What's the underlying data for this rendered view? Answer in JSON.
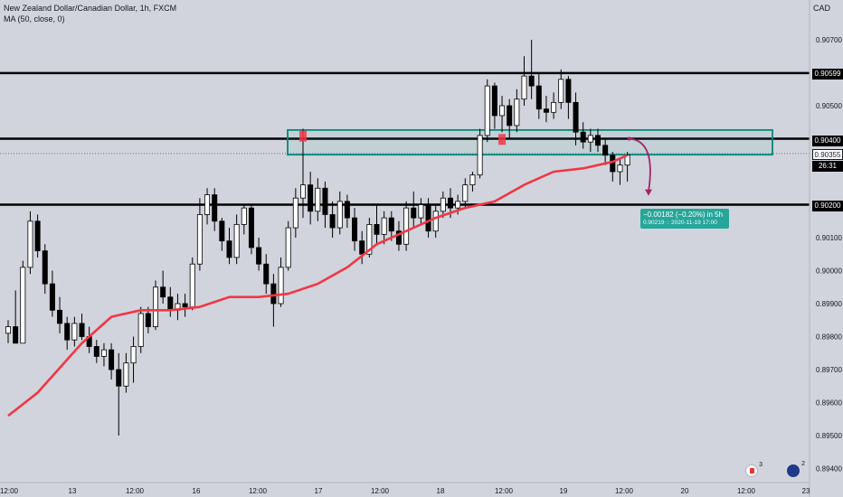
{
  "legend": {
    "symbol": "New Zealand Dollar/Canadian Dollar, 1h, FXCM",
    "indicator": "MA (50, close, 0)"
  },
  "currency_label": "CAD",
  "price_tags": {
    "resistance": "0.90599",
    "support_zone": "0.90400",
    "last": "0.90355",
    "countdown": "26:31",
    "support": "0.90200"
  },
  "projection": {
    "line1": "−0.00182 (−0.20%) in 5h",
    "line2": "0.90219  ◌ 2020-11-19  17:00"
  },
  "flags": {
    "ca_count": "3",
    "nz_count": "2"
  },
  "colors": {
    "background": "#d1d4dc",
    "ma": "#f23645",
    "zone": "#00897b",
    "projection": "#26a69a",
    "arrow": "#a3236b"
  },
  "chart_data": {
    "type": "candlestick",
    "title": "",
    "series_name": "New Zealand Dollar/Canadian Dollar, 1h, FXCM",
    "ylim": [
      0.8936,
      0.908
    ],
    "y_ticks": [
      "0.90700",
      "0.90500",
      "0.90100",
      "0.90000",
      "0.89900",
      "0.89800",
      "0.89700",
      "0.89600",
      "0.89500",
      "0.89400"
    ],
    "x_ticks": [
      "12:00",
      "13",
      "12:00",
      "16",
      "12:00",
      "17",
      "12:00",
      "18",
      "12:00",
      "19",
      "12:00",
      "20",
      "12:00",
      "23"
    ],
    "candles": [
      {
        "o": 0.8981,
        "h": 0.8985,
        "l": 0.8978,
        "c": 0.8983
      },
      {
        "o": 0.8983,
        "h": 0.8994,
        "l": 0.8979,
        "c": 0.8978
      },
      {
        "o": 0.8978,
        "h": 0.9003,
        "l": 0.8978,
        "c": 0.9001
      },
      {
        "o": 0.9001,
        "h": 0.9018,
        "l": 0.8999,
        "c": 0.9015
      },
      {
        "o": 0.9015,
        "h": 0.9017,
        "l": 0.9004,
        "c": 0.9006
      },
      {
        "o": 0.9006,
        "h": 0.9008,
        "l": 0.8993,
        "c": 0.8996
      },
      {
        "o": 0.8996,
        "h": 0.9,
        "l": 0.8986,
        "c": 0.8988
      },
      {
        "o": 0.8988,
        "h": 0.8992,
        "l": 0.8981,
        "c": 0.8984
      },
      {
        "o": 0.8984,
        "h": 0.8986,
        "l": 0.8976,
        "c": 0.8979
      },
      {
        "o": 0.8979,
        "h": 0.8986,
        "l": 0.8977,
        "c": 0.8984
      },
      {
        "o": 0.8984,
        "h": 0.8987,
        "l": 0.8979,
        "c": 0.898
      },
      {
        "o": 0.898,
        "h": 0.8983,
        "l": 0.8975,
        "c": 0.8977
      },
      {
        "o": 0.8977,
        "h": 0.8979,
        "l": 0.8972,
        "c": 0.8974
      },
      {
        "o": 0.8974,
        "h": 0.8978,
        "l": 0.8971,
        "c": 0.8976
      },
      {
        "o": 0.8976,
        "h": 0.8978,
        "l": 0.8967,
        "c": 0.897
      },
      {
        "o": 0.897,
        "h": 0.8975,
        "l": 0.895,
        "c": 0.8965
      },
      {
        "o": 0.8965,
        "h": 0.8975,
        "l": 0.8963,
        "c": 0.8972
      },
      {
        "o": 0.8972,
        "h": 0.898,
        "l": 0.8966,
        "c": 0.8977
      },
      {
        "o": 0.8977,
        "h": 0.8989,
        "l": 0.8975,
        "c": 0.8987
      },
      {
        "o": 0.8987,
        "h": 0.8989,
        "l": 0.8981,
        "c": 0.8983
      },
      {
        "o": 0.8983,
        "h": 0.8997,
        "l": 0.8982,
        "c": 0.8995
      },
      {
        "o": 0.8995,
        "h": 0.9,
        "l": 0.899,
        "c": 0.8992
      },
      {
        "o": 0.8992,
        "h": 0.8995,
        "l": 0.8986,
        "c": 0.8988
      },
      {
        "o": 0.8988,
        "h": 0.8993,
        "l": 0.8985,
        "c": 0.899
      },
      {
        "o": 0.899,
        "h": 0.8993,
        "l": 0.8986,
        "c": 0.8989
      },
      {
        "o": 0.8989,
        "h": 0.9004,
        "l": 0.8988,
        "c": 0.9002
      },
      {
        "o": 0.9002,
        "h": 0.9022,
        "l": 0.9,
        "c": 0.9017
      },
      {
        "o": 0.9017,
        "h": 0.9025,
        "l": 0.9014,
        "c": 0.9023
      },
      {
        "o": 0.9023,
        "h": 0.9025,
        "l": 0.9012,
        "c": 0.9015
      },
      {
        "o": 0.9015,
        "h": 0.9016,
        "l": 0.9006,
        "c": 0.9009
      },
      {
        "o": 0.9009,
        "h": 0.9013,
        "l": 0.9002,
        "c": 0.9004
      },
      {
        "o": 0.9004,
        "h": 0.9017,
        "l": 0.9002,
        "c": 0.9014
      },
      {
        "o": 0.9014,
        "h": 0.902,
        "l": 0.9011,
        "c": 0.9019
      },
      {
        "o": 0.9019,
        "h": 0.902,
        "l": 0.9005,
        "c": 0.9007
      },
      {
        "o": 0.9007,
        "h": 0.901,
        "l": 0.9,
        "c": 0.9002
      },
      {
        "o": 0.9002,
        "h": 0.9005,
        "l": 0.8993,
        "c": 0.8996
      },
      {
        "o": 0.8996,
        "h": 0.8999,
        "l": 0.8983,
        "c": 0.899
      },
      {
        "o": 0.899,
        "h": 0.9004,
        "l": 0.8989,
        "c": 0.9001
      },
      {
        "o": 0.9001,
        "h": 0.9015,
        "l": 0.9,
        "c": 0.9013
      },
      {
        "o": 0.9013,
        "h": 0.9025,
        "l": 0.901,
        "c": 0.9022
      },
      {
        "o": 0.9022,
        "h": 0.9043,
        "l": 0.9016,
        "c": 0.9026
      },
      {
        "o": 0.9026,
        "h": 0.903,
        "l": 0.9014,
        "c": 0.9018
      },
      {
        "o": 0.9018,
        "h": 0.9028,
        "l": 0.9015,
        "c": 0.9025
      },
      {
        "o": 0.9025,
        "h": 0.9027,
        "l": 0.9013,
        "c": 0.9017
      },
      {
        "o": 0.9017,
        "h": 0.9021,
        "l": 0.901,
        "c": 0.9013
      },
      {
        "o": 0.9013,
        "h": 0.9024,
        "l": 0.9011,
        "c": 0.9021
      },
      {
        "o": 0.9021,
        "h": 0.9023,
        "l": 0.9013,
        "c": 0.9016
      },
      {
        "o": 0.9016,
        "h": 0.9019,
        "l": 0.9006,
        "c": 0.9009
      },
      {
        "o": 0.9009,
        "h": 0.9012,
        "l": 0.9002,
        "c": 0.9005
      },
      {
        "o": 0.9005,
        "h": 0.9016,
        "l": 0.9004,
        "c": 0.9014
      },
      {
        "o": 0.9014,
        "h": 0.902,
        "l": 0.9008,
        "c": 0.9011
      },
      {
        "o": 0.9011,
        "h": 0.9018,
        "l": 0.9008,
        "c": 0.9016
      },
      {
        "o": 0.9016,
        "h": 0.9018,
        "l": 0.9009,
        "c": 0.9012
      },
      {
        "o": 0.9012,
        "h": 0.9015,
        "l": 0.9006,
        "c": 0.9008
      },
      {
        "o": 0.9008,
        "h": 0.9021,
        "l": 0.9006,
        "c": 0.9019
      },
      {
        "o": 0.9019,
        "h": 0.9024,
        "l": 0.9013,
        "c": 0.9016
      },
      {
        "o": 0.9016,
        "h": 0.9022,
        "l": 0.9014,
        "c": 0.902
      },
      {
        "o": 0.902,
        "h": 0.9022,
        "l": 0.901,
        "c": 0.9012
      },
      {
        "o": 0.9012,
        "h": 0.902,
        "l": 0.901,
        "c": 0.9018
      },
      {
        "o": 0.9018,
        "h": 0.9024,
        "l": 0.9016,
        "c": 0.9022
      },
      {
        "o": 0.9022,
        "h": 0.9025,
        "l": 0.9016,
        "c": 0.9019
      },
      {
        "o": 0.9019,
        "h": 0.9023,
        "l": 0.9017,
        "c": 0.9021
      },
      {
        "o": 0.9021,
        "h": 0.9028,
        "l": 0.9019,
        "c": 0.9026
      },
      {
        "o": 0.9026,
        "h": 0.903,
        "l": 0.9024,
        "c": 0.9029
      },
      {
        "o": 0.9029,
        "h": 0.9043,
        "l": 0.9028,
        "c": 0.9041
      },
      {
        "o": 0.9041,
        "h": 0.9058,
        "l": 0.9039,
        "c": 0.9056
      },
      {
        "o": 0.9056,
        "h": 0.9057,
        "l": 0.9043,
        "c": 0.9047
      },
      {
        "o": 0.9047,
        "h": 0.9053,
        "l": 0.9042,
        "c": 0.905
      },
      {
        "o": 0.905,
        "h": 0.9052,
        "l": 0.904,
        "c": 0.9044
      },
      {
        "o": 0.9044,
        "h": 0.9055,
        "l": 0.9042,
        "c": 0.9052
      },
      {
        "o": 0.9052,
        "h": 0.9065,
        "l": 0.905,
        "c": 0.9059
      },
      {
        "o": 0.9059,
        "h": 0.907,
        "l": 0.9052,
        "c": 0.9056
      },
      {
        "o": 0.9056,
        "h": 0.906,
        "l": 0.9046,
        "c": 0.9049
      },
      {
        "o": 0.9049,
        "h": 0.9053,
        "l": 0.9045,
        "c": 0.9048
      },
      {
        "o": 0.9048,
        "h": 0.9054,
        "l": 0.9046,
        "c": 0.9051
      },
      {
        "o": 0.9051,
        "h": 0.9061,
        "l": 0.9049,
        "c": 0.9058
      },
      {
        "o": 0.9058,
        "h": 0.9059,
        "l": 0.9046,
        "c": 0.9051
      },
      {
        "o": 0.9051,
        "h": 0.9054,
        "l": 0.9038,
        "c": 0.9042
      },
      {
        "o": 0.9042,
        "h": 0.9045,
        "l": 0.9037,
        "c": 0.9039
      },
      {
        "o": 0.9039,
        "h": 0.9043,
        "l": 0.9036,
        "c": 0.9041
      },
      {
        "o": 0.9041,
        "h": 0.9043,
        "l": 0.9036,
        "c": 0.9038
      },
      {
        "o": 0.9038,
        "h": 0.904,
        "l": 0.9032,
        "c": 0.9035
      },
      {
        "o": 0.9035,
        "h": 0.9036,
        "l": 0.9027,
        "c": 0.903
      },
      {
        "o": 0.903,
        "h": 0.9034,
        "l": 0.9026,
        "c": 0.9032
      },
      {
        "o": 0.9032,
        "h": 0.9036,
        "l": 0.9027,
        "c": 0.9035
      }
    ],
    "ma50": [
      [
        0,
        0.8956
      ],
      [
        4,
        0.8963
      ],
      [
        10,
        0.8978
      ],
      [
        14,
        0.8986
      ],
      [
        18,
        0.8988
      ],
      [
        22,
        0.8988
      ],
      [
        26,
        0.8989
      ],
      [
        30,
        0.8992
      ],
      [
        34,
        0.8992
      ],
      [
        38,
        0.8993
      ],
      [
        42,
        0.8996
      ],
      [
        46,
        0.9001
      ],
      [
        50,
        0.9008
      ],
      [
        54,
        0.9012
      ],
      [
        58,
        0.9016
      ],
      [
        62,
        0.9019
      ],
      [
        66,
        0.9021
      ],
      [
        70,
        0.9026
      ],
      [
        74,
        0.903
      ],
      [
        78,
        0.9031
      ],
      [
        82,
        0.9033
      ],
      [
        84,
        0.9035
      ]
    ],
    "levels": [
      0.90599,
      0.904,
      0.902
    ],
    "zone": [
      0.90368,
      0.9041
    ],
    "projection_target": 0.90219
  }
}
